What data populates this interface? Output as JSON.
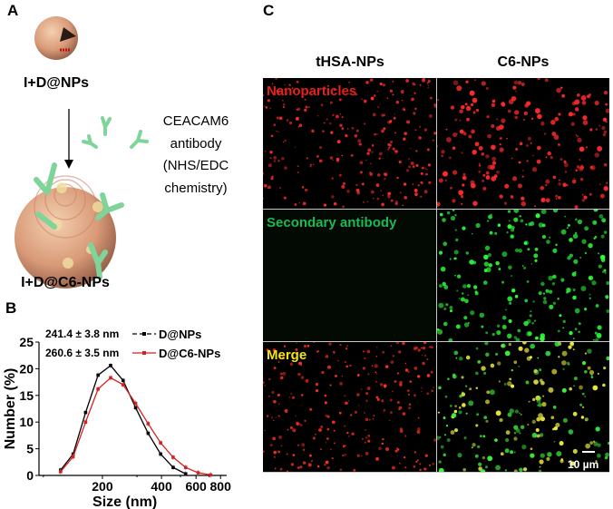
{
  "panel_a": {
    "label": "A",
    "top_particle": "I+D@NPs",
    "antibody_text": [
      "CEACAM6",
      "antibody",
      "(NHS/EDC",
      "chemistry)"
    ],
    "bottom_particle": "I+D@C6-NPs"
  },
  "panel_b": {
    "label": "B"
  },
  "chart_data": {
    "type": "line",
    "xlabel": "Size (nm)",
    "ylabel": "Number (%)",
    "xscale": "log",
    "xlim": [
      95,
      860
    ],
    "ylim": [
      0,
      25
    ],
    "xticks": [
      200,
      400,
      600,
      800
    ],
    "yticks": [
      0,
      5,
      10,
      15,
      20,
      25
    ],
    "grid": false,
    "legend_placement": "top",
    "series": [
      {
        "name": "D@NPs",
        "annotation": "241.4 ± 3.8 nm",
        "color": "#000000",
        "x": [
          122.4,
          141.8,
          164.2,
          190.1,
          220.2,
          255.0,
          295.3,
          342.0,
          396.1,
          458.7,
          531.2
        ],
        "y": [
          1.0,
          4.0,
          11.8,
          18.8,
          20.6,
          17.8,
          12.7,
          7.9,
          4.0,
          1.5,
          0.3
        ]
      },
      {
        "name": "D@C6-NPs",
        "annotation": "260.6 ± 3.5 nm",
        "color": "#d42020",
        "x": [
          122.4,
          141.8,
          164.2,
          190.1,
          220.2,
          255.0,
          295.3,
          342.0,
          396.1,
          458.7,
          531.2,
          615.1,
          712.4
        ],
        "y": [
          0.7,
          3.5,
          10.0,
          16.2,
          18.3,
          17.0,
          13.5,
          9.7,
          6.1,
          3.4,
          1.5,
          0.5,
          0.1
        ]
      }
    ]
  },
  "panel_c": {
    "label": "C",
    "columns": [
      "tHSA-NPs",
      "C6-NPs"
    ],
    "rows": [
      {
        "label": "Nanoparticles",
        "color": "#e8201c"
      },
      {
        "label": "Secondary antibody",
        "color": "#1db954"
      },
      {
        "label": "Merge",
        "color": "#f2e614"
      }
    ],
    "scale_bar": "10 µm"
  }
}
